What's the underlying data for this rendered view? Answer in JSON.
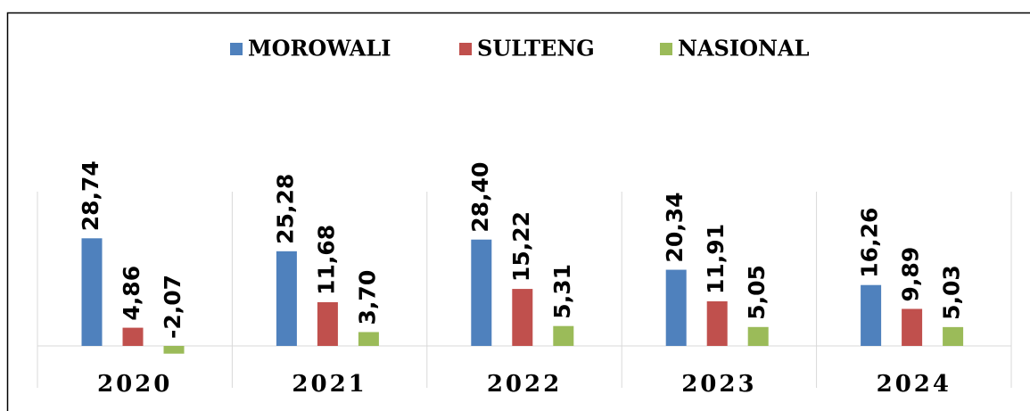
{
  "chart_data": {
    "type": "bar",
    "categories": [
      "2020",
      "2021",
      "2022",
      "2023",
      "2024"
    ],
    "series": [
      {
        "name": "MOROWALI",
        "color": "#4f81bd",
        "values": [
          28.74,
          25.28,
          28.4,
          20.34,
          16.26
        ],
        "value_labels": [
          "28,74",
          "25,28",
          "28,40",
          "20,34",
          "16,26"
        ]
      },
      {
        "name": "SULTENG",
        "color": "#c0504d",
        "values": [
          4.86,
          11.68,
          15.22,
          11.91,
          9.89
        ],
        "value_labels": [
          "4,86",
          "11,68",
          "15,22",
          "11,91",
          "9,89"
        ]
      },
      {
        "name": "NASIONAL",
        "color": "#9bbb59",
        "values": [
          -2.07,
          3.7,
          5.31,
          5.05,
          5.03
        ],
        "value_labels": [
          "-2,07",
          "3,70",
          "5,31",
          "5,05",
          "5,03"
        ]
      }
    ],
    "legend": "top"
  }
}
